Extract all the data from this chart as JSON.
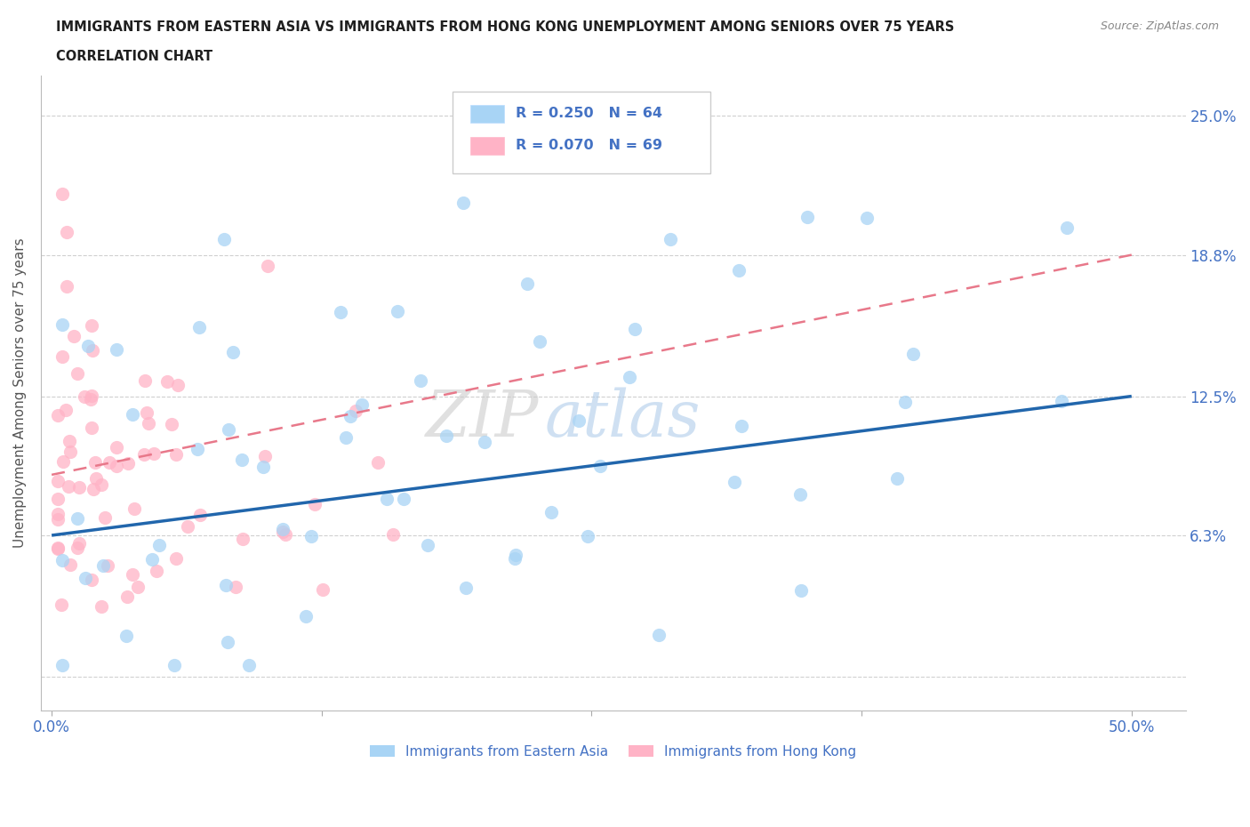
{
  "title_line1": "IMMIGRANTS FROM EASTERN ASIA VS IMMIGRANTS FROM HONG KONG UNEMPLOYMENT AMONG SENIORS OVER 75 YEARS",
  "title_line2": "CORRELATION CHART",
  "source_text": "Source: ZipAtlas.com",
  "ylabel": "Unemployment Among Seniors over 75 years",
  "xlim_min": -0.005,
  "xlim_max": 0.525,
  "ylim_min": -0.015,
  "ylim_max": 0.268,
  "ytick_vals": [
    0.0,
    0.063,
    0.125,
    0.188,
    0.25
  ],
  "ytick_labels_right": [
    "",
    "6.3%",
    "12.5%",
    "18.8%",
    "25.0%"
  ],
  "xtick_vals": [
    0.0,
    0.125,
    0.25,
    0.375,
    0.5
  ],
  "xtick_labels": [
    "0.0%",
    "",
    "",
    "",
    "50.0%"
  ],
  "R_blue": 0.25,
  "N_blue": 64,
  "R_pink": 0.07,
  "N_pink": 69,
  "color_blue_scatter": "#a8d4f5",
  "color_pink_scatter": "#ffb3c6",
  "color_blue_line": "#2166ac",
  "color_pink_line": "#e8788a",
  "blue_line_y0": 0.063,
  "blue_line_y1": 0.125,
  "pink_line_y0": 0.09,
  "pink_line_y1": 0.188,
  "legend_R_blue": "R = 0.250",
  "legend_N_blue": "N = 64",
  "legend_R_pink": "R = 0.070",
  "legend_N_pink": "N = 69",
  "label_blue": "Immigrants from Eastern Asia",
  "label_pink": "Immigrants from Hong Kong",
  "text_color": "#4472c4",
  "title_color": "#1f1f1f",
  "source_color": "#888888",
  "grid_color": "#d0d0d0",
  "ylabel_color": "#555555",
  "watermark_zip": "ZIP",
  "watermark_atlas": "atlas",
  "watermark_color_zip": "#c8c8c8",
  "watermark_color_atlas": "#a8c8e8"
}
